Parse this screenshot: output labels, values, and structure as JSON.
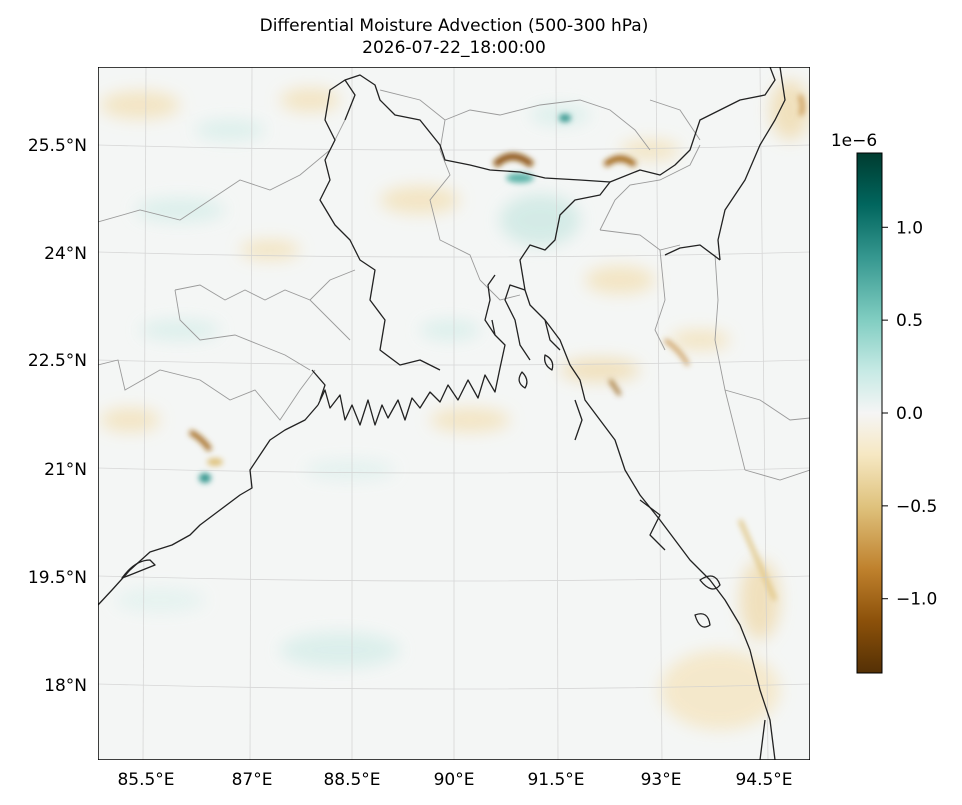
{
  "title": {
    "line1": "Differential Moisture Advection (500-300 hPa)",
    "line2": "2026-07-22_18:00:00"
  },
  "map": {
    "lon_labels": [
      "85.5°E",
      "87°E",
      "88.5°E",
      "90°E",
      "91.5°E",
      "93°E",
      "94.5°E"
    ],
    "lat_labels": [
      "25.5°N",
      "24°N",
      "22.5°N",
      "21°N",
      "19.5°N",
      "18°N"
    ],
    "field_colormap": "BrBG",
    "coastline_color": "#222222",
    "border_color": "#9a9a9a"
  },
  "colorbar": {
    "scale_label": "1e−6",
    "ticks": [
      "1.0",
      "0.5",
      "0.0",
      "−0.5",
      "−1.0"
    ],
    "tick_values": [
      1.0,
      0.5,
      0.0,
      -0.5,
      -1.0
    ],
    "range": [
      -1.4,
      1.4
    ],
    "colors": [
      "#543005",
      "#8c510a",
      "#bf812d",
      "#dfc27d",
      "#f6e8c3",
      "#f5f5f5",
      "#c7eae5",
      "#80cdc1",
      "#35978f",
      "#01665e",
      "#003c30"
    ]
  }
}
